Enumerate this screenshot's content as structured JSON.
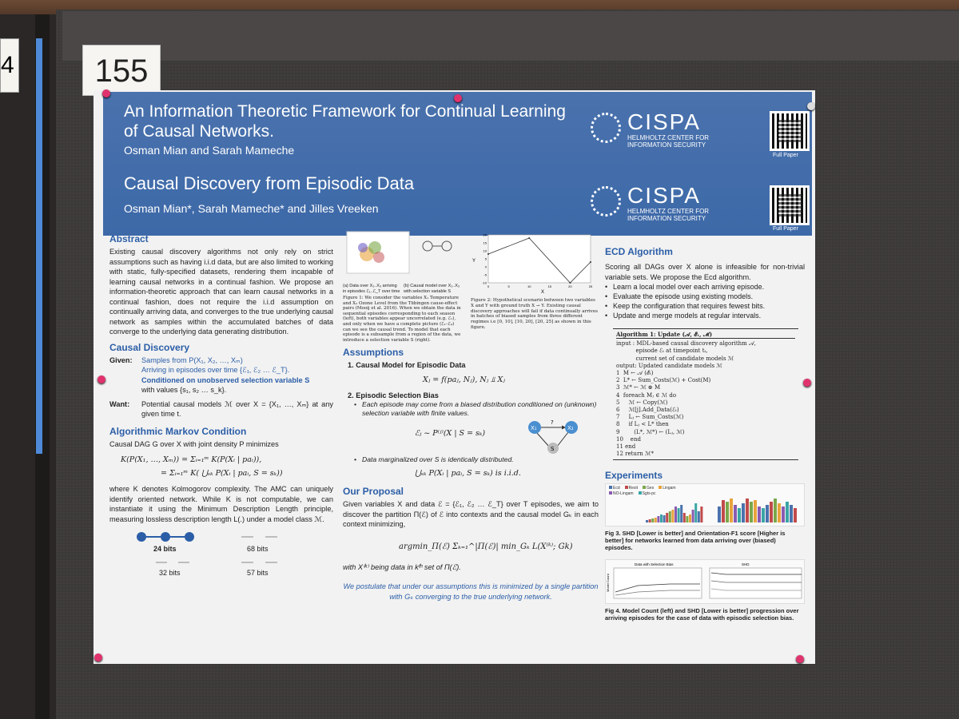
{
  "board": {
    "number": "155",
    "left_tag": "4"
  },
  "header": {
    "title1": "An Information Theoretic Framework for Continual Learning of Causal Networks.",
    "authors1": "Osman Mian and Sarah Mameche",
    "title2": "Causal Discovery from Episodic Data",
    "authors2": "Osman Mian*, Sarah Mameche* and Jilles Vreeken",
    "logo_name": "CISPA",
    "logo_sub": "HELMHOLTZ CENTER FOR INFORMATION SECURITY",
    "qr_label": "Full Paper"
  },
  "abstract": {
    "heading": "Abstract",
    "body": "Existing causal discovery algorithms not only rely on strict assumptions such as having i.i.d data, but are also limited to working with static, fully-specified datasets, rendering them incapable of learning causal networks in a continual fashion. We propose an information-theoretic approach that can learn causal networks in a continual fashion, does not require the i.i.d assumption on continually arriving data, and converges to the true underlying causal network as samples within the accumulated batches of data converge to the underlying data generating distribution."
  },
  "causal_discovery": {
    "heading": "Causal Discovery",
    "given_label": "Given:",
    "given_line1": "Samples from P(X₁, X₂, …, Xₘ)",
    "given_line2": "Arriving in episodes over time {ℰ₁, ℰ₂ … ℰ_T}.",
    "given_line3": "Conditioned on unobserved selection variable S",
    "given_line4": "with values {s₁, s₂ … s_k}.",
    "want_label": "Want:",
    "want_text": "Potential causal models ℳ over X = {X₁, …, Xₘ} at any given time t."
  },
  "amc": {
    "heading": "Algorithmic Markov Condition",
    "intro": "Causal DAG G over X with joint density P minimizes",
    "eq1": "K(P(X₁, …, Xₘ)) = Σᵢ₌₁ᵐ K(P(Xᵢ | paᵢ)),",
    "eq2": "= Σᵢ₌₁ᵐ K( ⋃ₛₖ P(Xᵢ | paᵢ, S = sₖ))",
    "body": "where K denotes Kolmogorov complexity. The AMC can uniquely identify oriented network. While K is not computable, we can instantiate it using the Minimum Description Length principle, measuring lossless description length L(.) under a model class ℳ.",
    "graphs": [
      {
        "label": "24 bits"
      },
      {
        "label": "68 bits"
      },
      {
        "label": "32 bits"
      },
      {
        "label": "57 bits"
      }
    ]
  },
  "fig1": {
    "caption_a": "(a) Data over X₁..X₃ arriving in episodes ℰ₁..ℰ_T over time",
    "caption_b": "(b) Causal model over X₁..X₃ with selection variable S",
    "caption": "Figure 1: We consider the variables X₁ Temperature and X₂ Ozone Level from the Tübingen cause-effect pairs (Mooij et al. 2016). When we obtain the data in sequential episodes corresponding to each season (left), both variables appear uncorrelated (e.g. ℰ₁), and only when we have a complete picture (ℰ₁–ℰ₄) can we see the causal trend. To model that each episode is a subsample from a region of the data, we introduce a selection variable S (right)."
  },
  "fig2": {
    "caption": "Figure 2: Hypothetical scenario between two variables X and Y with ground truth X → Y. Existing causal discovery approaches will fail if data continually arrives in batches of biased samples from three different regimes i.e [0, 10], [10, 20], [20, 25] as shown in this figure.",
    "xlabel": "X",
    "ylabel": "Y",
    "yticks": [
      "20",
      "15",
      "10",
      "5",
      "0",
      "-5",
      "-10"
    ],
    "xticks": [
      "0",
      "5",
      "10",
      "15",
      "20",
      "25"
    ]
  },
  "chart_data": {
    "type": "line",
    "title": "",
    "xlabel": "X",
    "ylabel": "Y",
    "x": [
      0,
      10,
      20,
      25
    ],
    "y": [
      8,
      18,
      -10,
      3
    ],
    "xlim": [
      0,
      25
    ],
    "ylim": [
      -10,
      20
    ]
  },
  "assumptions": {
    "heading": "Assumptions",
    "a1_title": "1.  Causal Model for Episodic Data",
    "a1_eq": "Xⱼ = f(paⱼ, Nⱼ),        Nⱼ ⫫ Xⱼ",
    "a2_title": "2.  Episodic Selection Bias",
    "a2_b1": "Each episode may come from a biased distribution conditioned on (unknown) selection variable with finite values.",
    "a2_eq": "ℰⱼ ~ P⁽ʲ⁾(X | S = sₖ)",
    "a2_b2": "Data marginalized over S is identically distributed.",
    "a2_eq2": "⋃ₛₖ P(Xᵢ | paᵢ, S = sₖ)  is i.i.d.",
    "node_x1": "X₁",
    "node_x2": "X₂",
    "node_s": "S",
    "node_q": "?"
  },
  "proposal": {
    "heading": "Our Proposal",
    "body": "Given variables X and data ℰ = {ℰ₁, ℰ₂ … ℰ_T} over T episodes, we aim to discover the partition Π(ℰ) of ℰ into contexts and the causal model Gₖ in each context minimizing,",
    "eq": "argmin_Π(ℰ) Σₖ₌₁^|Π(ℰ)| min_Gₖ L(X⁽ᵏ⁾; Gk)",
    "where": "with X⁽ᵏ⁾ being data in kᵗʰ set of Π(ℰ).",
    "postulate": "We postulate that under our assumptions this is minimized by a single partition with Gₖ converging to the true underlying network."
  },
  "ecd": {
    "heading": "ECD Algorithm",
    "intro": "Scoring all DAGs over X alone is infeasible for non-trivial variable sets. We propose the Ecd algorithm.",
    "bullets": [
      "Learn a local model over each arriving episode.",
      "Evaluate the episode using existing models.",
      "Keep the configuration that requires fewest bits.",
      "Update and merge models at regular intervals."
    ],
    "algo_title": "Algorithm 1: Update (𝒜, ℰₜ, ℳ)",
    "algo_lines": [
      "input : MDL-based causal discovery algorithm 𝒜,",
      "           episode ℰₜ at timepoint tₜ,",
      "           current set of candidate models ℳ",
      "output: Updated candidate models ℳ",
      "1  M ← 𝒜 (ℰₜ)",
      "2  L* ← Sum_Costs(ℳ) + Cost(M)",
      "3  ℳ* ← ℳ ⊕ M",
      "4  foreach Mⱼ ∈ ℳ do",
      "5     ℳ ← Copy(ℳ)",
      "6     ℳ[j].Add_Data(ℰₜ)",
      "7     Lⱼ ← Sum_Costs(ℳ)",
      "8     if Lⱼ < L* then",
      "9        (L*, ℳ*) ← (Lⱼ, ℳ)",
      "10    end",
      "11 end",
      "12 return ℳ*"
    ]
  },
  "experiments": {
    "heading": "Experiments",
    "legend": [
      "Ecd",
      "Resit",
      "Ges",
      "Lingam",
      "NO-Lingam",
      "Sgts-pc"
    ],
    "fig3_caption": "Fig 3. SHD [Lower is better] and Orientation-F1 score [Higher is better] for networks learned from data arriving over (biased) episodes.",
    "fig4_caption": "Fig 4. Model Count (left) and SHD [Lower is better] progression over arriving episodes for the case of data with episodic selection bias.",
    "fig4_title_left": "Data with Selection Bias",
    "fig4_title_right": "SHD",
    "fig4_ylabel": "Model Count"
  },
  "colors": {
    "header_blue": "#3f6aa9",
    "accent_blue": "#2b5ea7",
    "pin": "#e0336d"
  }
}
